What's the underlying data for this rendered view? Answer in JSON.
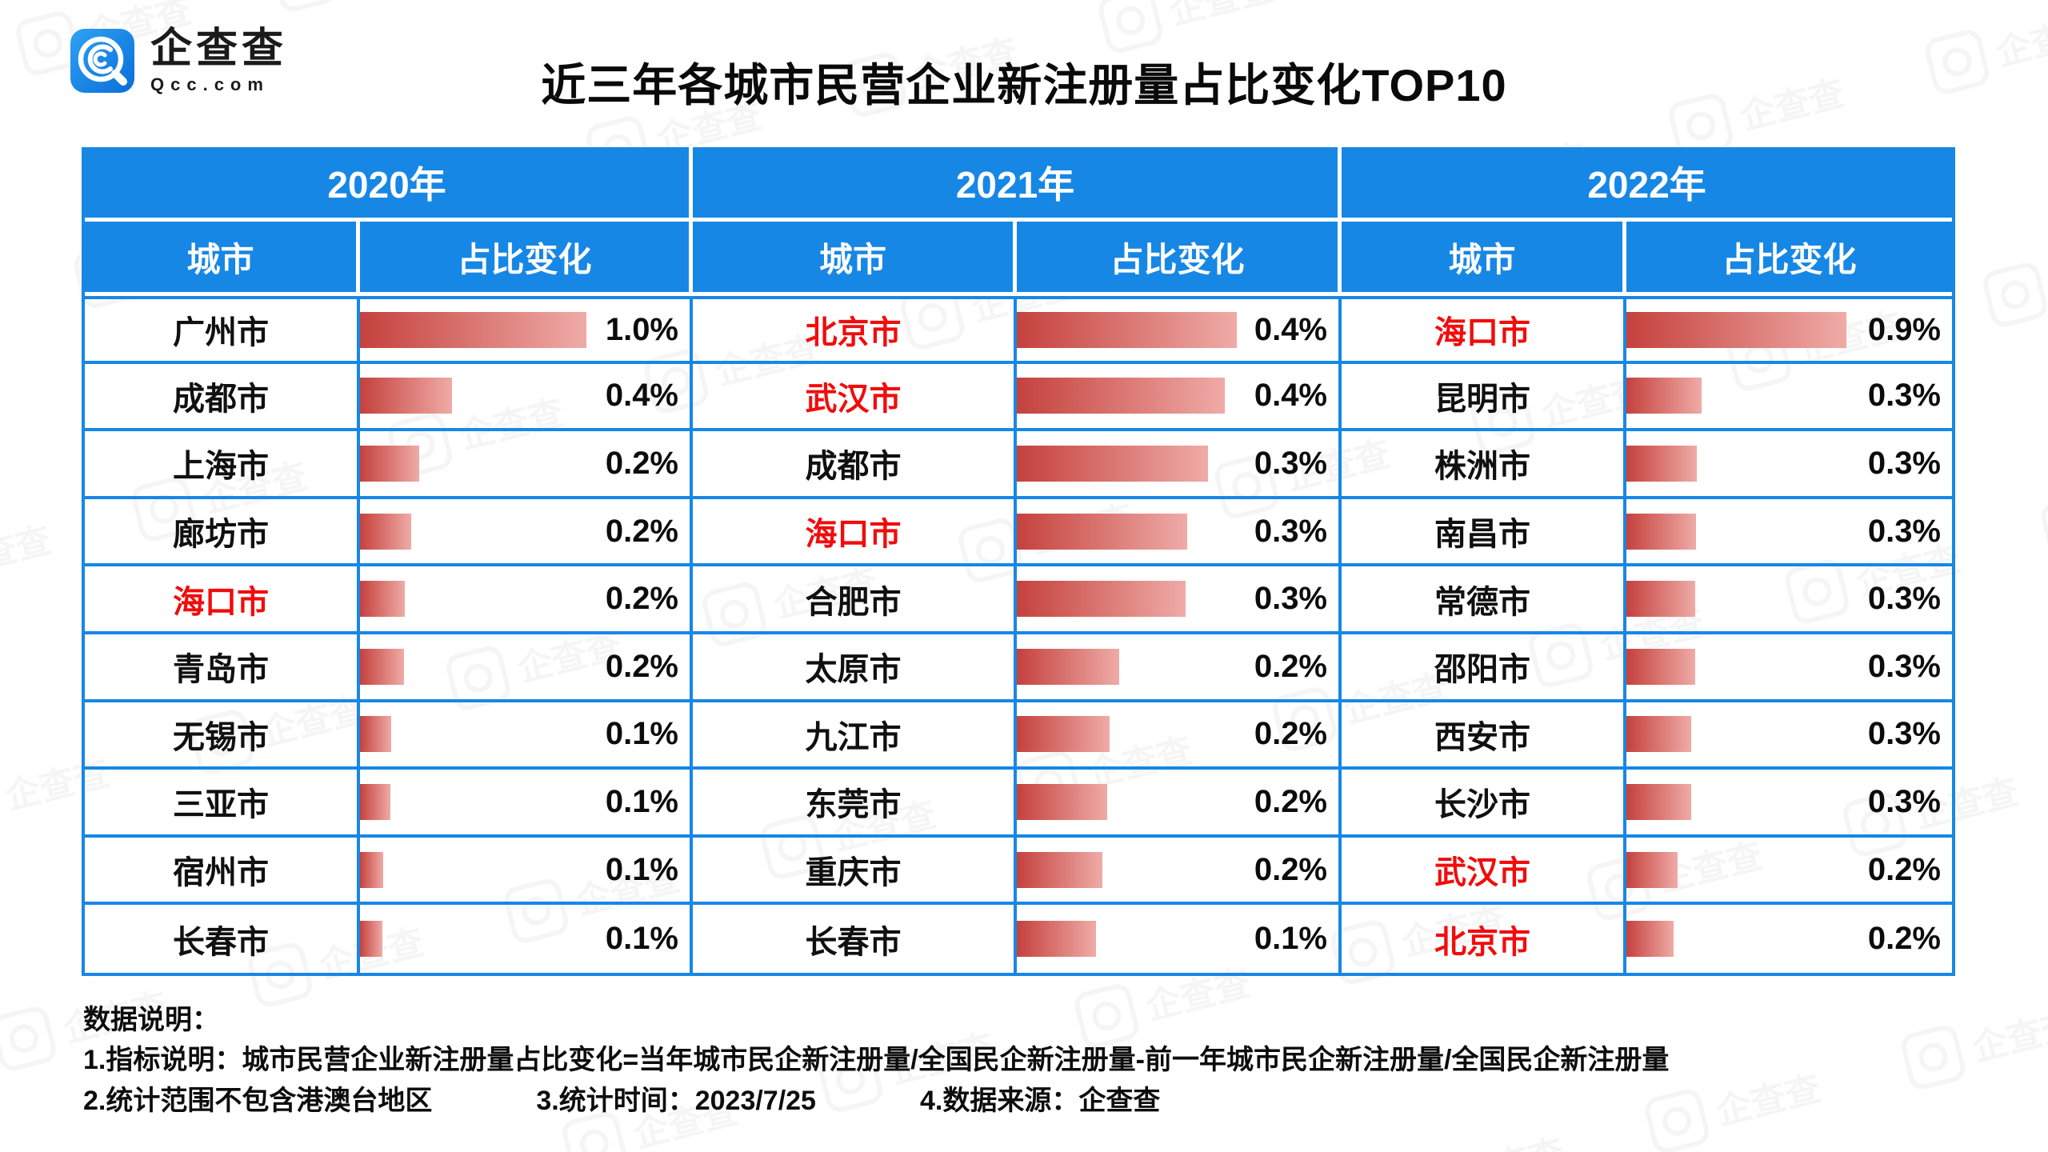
{
  "brand": {
    "name": "企查查",
    "domain": "Qcc.com"
  },
  "title": "近三年各城市民营企业新注册量占比变化TOP10",
  "colors": {
    "header_blue": "#1787e5",
    "highlight_red": "#f20c0c",
    "bar_gradient_start": "#c5413d",
    "bar_gradient_end": "#efaba7"
  },
  "table": {
    "sections": [
      {
        "year": "2020年",
        "city_header": "城市",
        "change_header": "占比变化",
        "rows": [
          {
            "city": "广州市",
            "value": "1.0%",
            "bar": 0.71,
            "highlight": false
          },
          {
            "city": "成都市",
            "value": "0.4%",
            "bar": 0.29,
            "highlight": false
          },
          {
            "city": "上海市",
            "value": "0.2%",
            "bar": 0.185,
            "highlight": false
          },
          {
            "city": "廊坊市",
            "value": "0.2%",
            "bar": 0.16,
            "highlight": false
          },
          {
            "city": "海口市",
            "value": "0.2%",
            "bar": 0.14,
            "highlight": true
          },
          {
            "city": "青岛市",
            "value": "0.2%",
            "bar": 0.138,
            "highlight": false
          },
          {
            "city": "无锡市",
            "value": "0.1%",
            "bar": 0.097,
            "highlight": false
          },
          {
            "city": "三亚市",
            "value": "0.1%",
            "bar": 0.095,
            "highlight": false
          },
          {
            "city": "宿州市",
            "value": "0.1%",
            "bar": 0.072,
            "highlight": false
          },
          {
            "city": "长春市",
            "value": "0.1%",
            "bar": 0.071,
            "highlight": false
          }
        ]
      },
      {
        "year": "2021年",
        "city_header": "城市",
        "change_header": "占比变化",
        "rows": [
          {
            "city": "北京市",
            "value": "0.4%",
            "bar": 0.71,
            "highlight": true
          },
          {
            "city": "武汉市",
            "value": "0.4%",
            "bar": 0.67,
            "highlight": true
          },
          {
            "city": "成都市",
            "value": "0.3%",
            "bar": 0.615,
            "highlight": false
          },
          {
            "city": "海口市",
            "value": "0.3%",
            "bar": 0.55,
            "highlight": true
          },
          {
            "city": "合肥市",
            "value": "0.3%",
            "bar": 0.545,
            "highlight": false
          },
          {
            "city": "太原市",
            "value": "0.2%",
            "bar": 0.33,
            "highlight": false
          },
          {
            "city": "九江市",
            "value": "0.2%",
            "bar": 0.3,
            "highlight": false
          },
          {
            "city": "东莞市",
            "value": "0.2%",
            "bar": 0.29,
            "highlight": false
          },
          {
            "city": "重庆市",
            "value": "0.2%",
            "bar": 0.275,
            "highlight": false
          },
          {
            "city": "长春市",
            "value": "0.1%",
            "bar": 0.255,
            "highlight": false
          }
        ]
      },
      {
        "year": "2022年",
        "city_header": "城市",
        "change_header": "占比变化",
        "rows": [
          {
            "city": "海口市",
            "value": "0.9%",
            "bar": 0.7,
            "highlight": true
          },
          {
            "city": "昆明市",
            "value": "0.3%",
            "bar": 0.24,
            "highlight": false
          },
          {
            "city": "株洲市",
            "value": "0.3%",
            "bar": 0.225,
            "highlight": false
          },
          {
            "city": "南昌市",
            "value": "0.3%",
            "bar": 0.222,
            "highlight": false
          },
          {
            "city": "常德市",
            "value": "0.3%",
            "bar": 0.22,
            "highlight": false
          },
          {
            "city": "邵阳市",
            "value": "0.3%",
            "bar": 0.218,
            "highlight": false
          },
          {
            "city": "西安市",
            "value": "0.3%",
            "bar": 0.207,
            "highlight": false
          },
          {
            "city": "长沙市",
            "value": "0.3%",
            "bar": 0.205,
            "highlight": false
          },
          {
            "city": "武汉市",
            "value": "0.2%",
            "bar": 0.162,
            "highlight": true
          },
          {
            "city": "北京市",
            "value": "0.2%",
            "bar": 0.15,
            "highlight": true
          }
        ]
      }
    ]
  },
  "notes": {
    "heading": "数据说明：",
    "line1": "1.指标说明：城市民营企业新注册量占比变化=当年城市民企新注册量/全国民企新注册量-前一年城市民企新注册量/全国民企新注册量",
    "line2a": "2.统计范围不包含港澳台地区",
    "line2b": "3.统计时间：2023/7/25",
    "line2c": "4.数据来源：企查查"
  },
  "chart_data": [
    {
      "type": "bar",
      "orientation": "horizontal",
      "title": "2020年",
      "categories": [
        "广州市",
        "成都市",
        "上海市",
        "廊坊市",
        "海口市",
        "青岛市",
        "无锡市",
        "三亚市",
        "宿州市",
        "长春市"
      ],
      "values": [
        1.0,
        0.4,
        0.2,
        0.2,
        0.2,
        0.2,
        0.1,
        0.1,
        0.1,
        0.1
      ],
      "unit": "%",
      "highlighted_categories": [
        "海口市"
      ]
    },
    {
      "type": "bar",
      "orientation": "horizontal",
      "title": "2021年",
      "categories": [
        "北京市",
        "武汉市",
        "成都市",
        "海口市",
        "合肥市",
        "太原市",
        "九江市",
        "东莞市",
        "重庆市",
        "长春市"
      ],
      "values": [
        0.4,
        0.4,
        0.3,
        0.3,
        0.3,
        0.2,
        0.2,
        0.2,
        0.2,
        0.1
      ],
      "unit": "%",
      "highlighted_categories": [
        "北京市",
        "武汉市",
        "海口市"
      ]
    },
    {
      "type": "bar",
      "orientation": "horizontal",
      "title": "2022年",
      "categories": [
        "海口市",
        "昆明市",
        "株洲市",
        "南昌市",
        "常德市",
        "邵阳市",
        "西安市",
        "长沙市",
        "武汉市",
        "北京市"
      ],
      "values": [
        0.9,
        0.3,
        0.3,
        0.3,
        0.3,
        0.3,
        0.3,
        0.3,
        0.2,
        0.2
      ],
      "unit": "%",
      "highlighted_categories": [
        "海口市",
        "武汉市",
        "北京市"
      ]
    }
  ]
}
